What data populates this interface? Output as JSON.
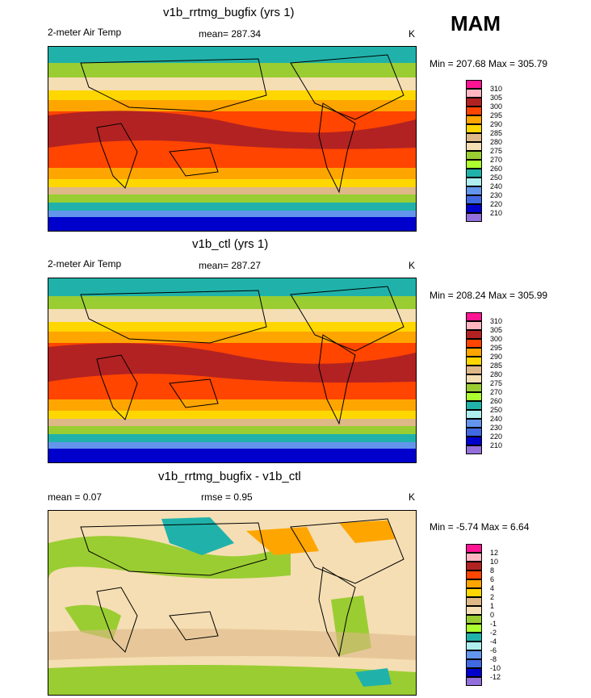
{
  "season": "MAM",
  "panels": [
    {
      "title": "v1b_rrtmg_bugfix (yrs 1)",
      "left_label": "2-meter Air Temp",
      "stat_label": "mean= 287.34",
      "units": "K",
      "minmax": "Min = 207.68 Max = 305.79",
      "levels": [
        "310",
        "305",
        "300",
        "295",
        "290",
        "285",
        "280",
        "275",
        "270",
        "260",
        "250",
        "240",
        "230",
        "220",
        "210"
      ]
    },
    {
      "title": "v1b_ctl (yrs 1)",
      "left_label": "2-meter Air Temp",
      "stat_label": "mean= 287.27",
      "units": "K",
      "minmax": "Min = 208.24 Max = 305.99",
      "levels": [
        "310",
        "305",
        "300",
        "295",
        "290",
        "285",
        "280",
        "275",
        "270",
        "260",
        "250",
        "240",
        "230",
        "220",
        "210"
      ]
    },
    {
      "title": "v1b_rrtmg_bugfix - v1b_ctl",
      "left_label": "mean =   0.07",
      "stat_label": "rmse =   0.95",
      "units": "K",
      "minmax": "Min =  -5.74 Max =   6.64",
      "levels": [
        "12",
        "10",
        "8",
        "6",
        "4",
        "2",
        "1",
        "0",
        "-1",
        "-2",
        "-4",
        "-6",
        "-8",
        "-10",
        "-12"
      ]
    }
  ],
  "colors": {
    "abs": [
      "#ff1493",
      "#ffb6c1",
      "#b22222",
      "#ff4500",
      "#ffa500",
      "#ffd700",
      "#deb887",
      "#f5deb3",
      "#9acd32",
      "#adff2f",
      "#20b2aa",
      "#afeeee",
      "#6495ed",
      "#4169e1",
      "#0000cd",
      "#9370db"
    ],
    "diff": [
      "#ff1493",
      "#ffb6c1",
      "#b22222",
      "#ff4500",
      "#ffa500",
      "#ffd700",
      "#deb887",
      "#f5deb3",
      "#9acd32",
      "#adff2f",
      "#20b2aa",
      "#afeeee",
      "#6495ed",
      "#4169e1",
      "#0000cd",
      "#9370db"
    ]
  }
}
